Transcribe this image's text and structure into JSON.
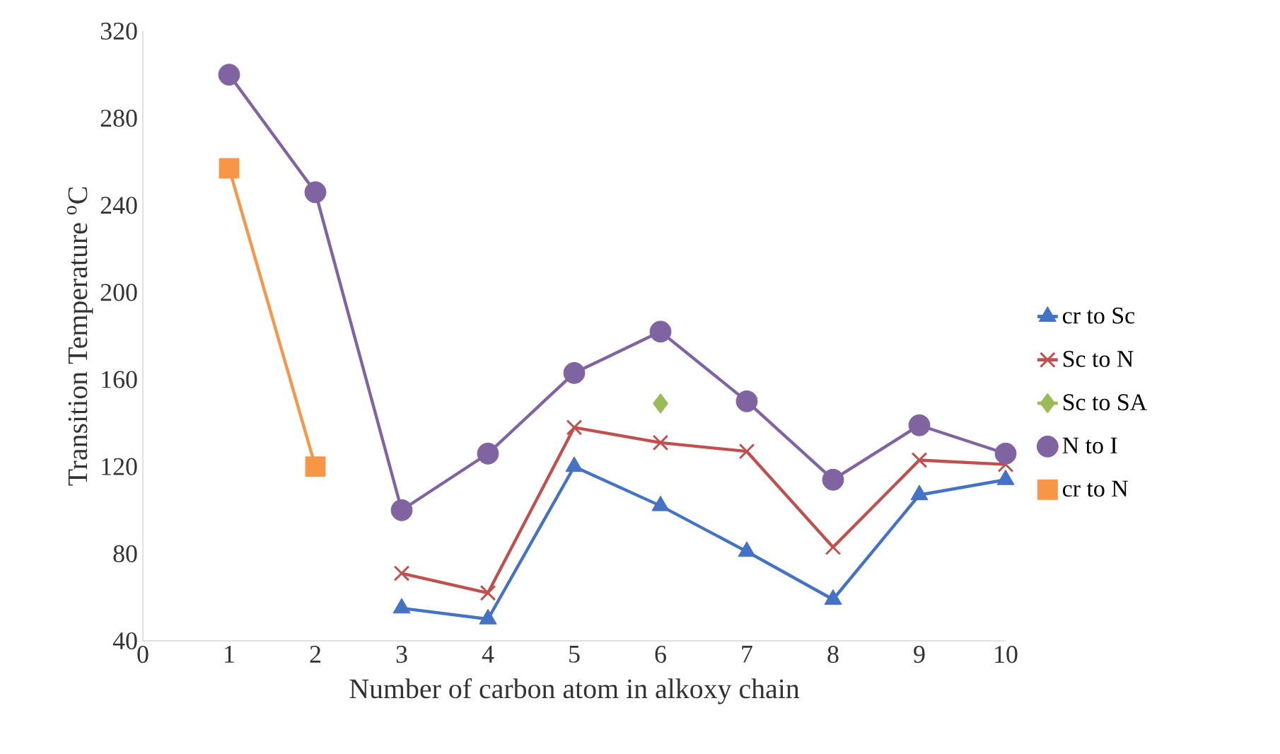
{
  "chart_data": {
    "type": "line",
    "xlabel": "Number of carbon atom in alkoxy chain",
    "ylabel": "Transition Temperature $^{o}$C",
    "xlim": [
      0,
      10
    ],
    "xticks": [
      0,
      1,
      2,
      3,
      4,
      5,
      6,
      7,
      8,
      9,
      10
    ],
    "ylim": [
      40,
      320
    ],
    "yticks": [
      40,
      80,
      120,
      160,
      200,
      240,
      280,
      320
    ],
    "grid": false,
    "legend": "right",
    "series": [
      {
        "name": "cr to Sc",
        "color": "#4472c4",
        "marker": "triangle",
        "x": [
          3,
          4,
          5,
          6,
          7,
          8,
          9,
          10
        ],
        "values": [
          55,
          50,
          120,
          102,
          81,
          59,
          107,
          114
        ]
      },
      {
        "name": "Sc to N",
        "color": "#c0504d",
        "marker": "cross",
        "x": [
          3,
          4,
          5,
          6,
          7,
          8,
          9,
          10
        ],
        "values": [
          71,
          62,
          138,
          131,
          127,
          83,
          123,
          121
        ]
      },
      {
        "name": "Sc to SA",
        "color": "#9bbb59",
        "marker": "diamond",
        "x": [
          6
        ],
        "values": [
          149
        ]
      },
      {
        "name": "N to I",
        "color": "#8064a2",
        "marker": "circle",
        "x": [
          1,
          2,
          3,
          4,
          5,
          6,
          7,
          8,
          9,
          10
        ],
        "values": [
          300,
          246,
          100,
          126,
          163,
          182,
          150,
          114,
          139,
          126
        ]
      },
      {
        "name": "cr to N",
        "color": "#f79646",
        "marker": "square",
        "x": [
          1,
          2
        ],
        "values": [
          257,
          120
        ]
      }
    ]
  }
}
